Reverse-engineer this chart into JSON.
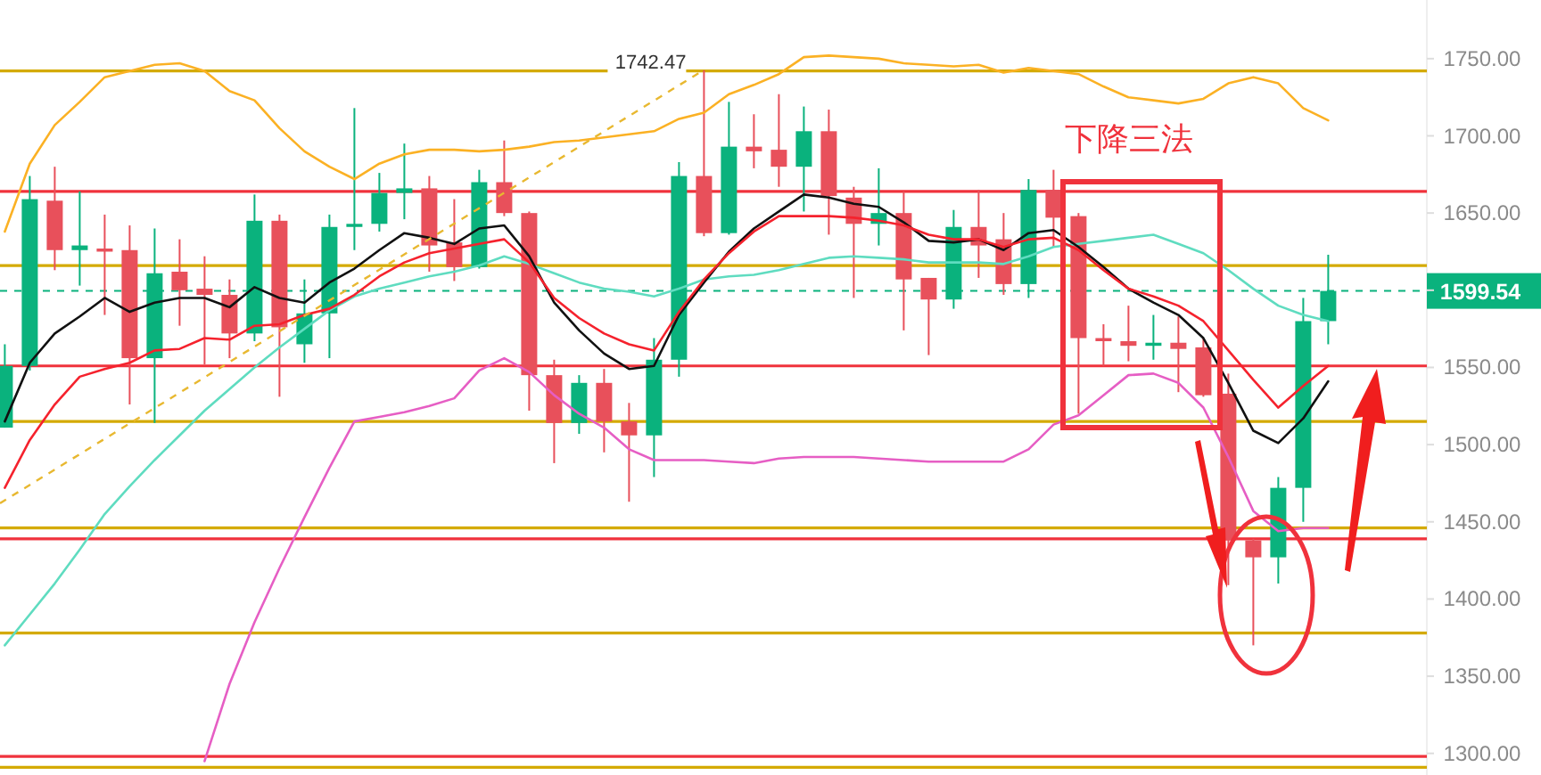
{
  "chart_data": {
    "type": "candlestick",
    "tick_labels": "y",
    "grid": false,
    "categories": [
      null,
      null,
      null,
      null,
      null,
      null,
      null,
      null,
      null,
      null,
      null,
      null,
      null,
      null,
      null,
      null,
      null,
      null,
      null,
      null,
      null,
      null,
      null,
      null,
      null,
      null,
      null,
      null,
      null,
      null,
      null,
      null,
      null,
      null,
      null,
      null,
      null,
      null,
      null,
      null,
      null,
      null,
      null,
      null,
      null,
      null,
      null,
      null,
      null,
      null,
      null,
      null,
      null,
      null
    ],
    "ohlc": [
      [
        1511,
        1565,
        1511,
        1551
      ],
      [
        1551,
        1674,
        1548,
        1659
      ],
      [
        1658,
        1680,
        1613,
        1626
      ],
      [
        1626,
        1664,
        1603,
        1629
      ],
      [
        1627,
        1649,
        1584,
        1625
      ],
      [
        1626,
        1642,
        1526,
        1556
      ],
      [
        1556,
        1640,
        1514,
        1611
      ],
      [
        1612,
        1633,
        1577,
        1600
      ],
      [
        1601,
        1622,
        1552,
        1597
      ],
      [
        1597,
        1607,
        1556,
        1572
      ],
      [
        1572,
        1662,
        1567,
        1645
      ],
      [
        1645,
        1649,
        1531,
        1576
      ],
      [
        1565,
        1607,
        1553,
        1585
      ],
      [
        1585,
        1649,
        1556,
        1641
      ],
      [
        1641,
        1718,
        1626,
        1643
      ],
      [
        1643,
        1676,
        1638,
        1663
      ],
      [
        1663,
        1695,
        1646,
        1666
      ],
      [
        1666,
        1674,
        1612,
        1629
      ],
      [
        1631,
        1659,
        1606,
        1615
      ],
      [
        1615,
        1678,
        1614,
        1670
      ],
      [
        1670,
        1697,
        1648,
        1650
      ],
      [
        1650,
        1651,
        1522,
        1545
      ],
      [
        1545,
        1555,
        1488,
        1514
      ],
      [
        1514,
        1545,
        1507,
        1540
      ],
      [
        1540,
        1549,
        1495,
        1515
      ],
      [
        1515,
        1527,
        1463,
        1506
      ],
      [
        1506,
        1569,
        1479,
        1555
      ],
      [
        1555,
        1683,
        1544,
        1674
      ],
      [
        1674,
        1742.47,
        1635,
        1637
      ],
      [
        1637,
        1722,
        1636,
        1693
      ],
      [
        1693,
        1714,
        1679,
        1690
      ],
      [
        1691,
        1727,
        1667,
        1680
      ],
      [
        1680,
        1719,
        1651,
        1703
      ],
      [
        1703,
        1717,
        1636,
        1661
      ],
      [
        1660,
        1667,
        1595,
        1643
      ],
      [
        1643,
        1679,
        1629,
        1650
      ],
      [
        1650,
        1664,
        1574,
        1607
      ],
      [
        1608,
        1608,
        1558,
        1594
      ],
      [
        1594,
        1652,
        1588,
        1641
      ],
      [
        1641,
        1665,
        1608,
        1629
      ],
      [
        1633,
        1650,
        1597,
        1604
      ],
      [
        1604,
        1672,
        1595,
        1665
      ],
      [
        1665,
        1678,
        1628,
        1647
      ],
      [
        1648,
        1650,
        1520,
        1569
      ],
      [
        1569,
        1578,
        1551,
        1567
      ],
      [
        1567,
        1590,
        1554,
        1564
      ],
      [
        1564,
        1584,
        1555,
        1566
      ],
      [
        1566,
        1583,
        1534,
        1562
      ],
      [
        1563,
        1569,
        1531,
        1532
      ],
      [
        1533,
        1546,
        1409,
        1438
      ],
      [
        1438,
        1439,
        1370,
        1427
      ],
      [
        1427,
        1479,
        1410,
        1472
      ],
      [
        1472,
        1595,
        1450,
        1580
      ],
      [
        1580,
        1623,
        1565,
        1599.54
      ]
    ],
    "colors": [
      "#0ab27d",
      "#0ab27d",
      "#e8505b",
      "#0ab27d",
      "#e8505b",
      "#e8505b",
      "#0ab27d",
      "#e8505b",
      "#e8505b",
      "#e8505b",
      "#0ab27d",
      "#e8505b",
      "#0ab27d",
      "#0ab27d",
      "#0ab27d",
      "#0ab27d",
      "#0ab27d",
      "#e8505b",
      "#e8505b",
      "#0ab27d",
      "#e8505b",
      "#e8505b",
      "#e8505b",
      "#0ab27d",
      "#e8505b",
      "#e8505b",
      "#0ab27d",
      "#0ab27d",
      "#e8505b",
      "#0ab27d",
      "#e8505b",
      "#e8505b",
      "#0ab27d",
      "#e8505b",
      "#e8505b",
      "#0ab27d",
      "#e8505b",
      "#e8505b",
      "#0ab27d",
      "#e8505b",
      "#e8505b",
      "#0ab27d",
      "#e8505b",
      "#e8505b",
      "#e8505b",
      "#e8505b",
      "#0ab27d",
      "#e8505b",
      "#e8505b",
      "#e8505b",
      "#e8505b",
      "#0ab27d",
      "#0ab27d",
      "#0ab27d"
    ],
    "series": [
      {
        "type": "line",
        "color": "#fbb124",
        "values": [
          1638,
          1682,
          1707,
          1722,
          1738,
          1742,
          1746,
          1747,
          1742,
          1729,
          1723,
          1705,
          1690,
          1680,
          1672,
          1682,
          1688,
          1691,
          1691,
          1690,
          1691,
          1693,
          1696,
          1697,
          1699,
          1701,
          1703,
          1711,
          1715,
          1727,
          1733,
          1740,
          1751,
          1752,
          1751,
          1750,
          1747,
          1746,
          1745,
          1746,
          1741,
          1744,
          1742,
          1740,
          1732,
          1725,
          1723,
          1721,
          1724,
          1734,
          1738,
          1734,
          1718,
          1710
        ]
      },
      {
        "type": "line",
        "color": "#e65ec4",
        "values": [
          null,
          null,
          null,
          null,
          null,
          null,
          null,
          null,
          1295,
          1345,
          1385,
          1420,
          1453,
          1485,
          1515,
          1518,
          1521,
          1525,
          1530,
          1548,
          1556,
          1547,
          1532,
          1520,
          1511,
          1497,
          1490,
          1490,
          1490,
          1489,
          1488,
          1491,
          1492,
          1492,
          1492,
          1491,
          1490,
          1489,
          1489,
          1489,
          1489,
          1497,
          1513,
          1519,
          1532,
          1545,
          1546,
          1540,
          1524,
          1492,
          1457,
          1444,
          1446,
          1446
        ]
      },
      {
        "type": "line",
        "color": "#5fdcc0",
        "values": [
          1370,
          1390,
          1410,
          1432,
          1455,
          1473,
          1490,
          1506,
          1522,
          1536,
          1550,
          1563,
          1575,
          1587,
          1596,
          1601,
          1605,
          1609,
          1612,
          1616,
          1622,
          1617,
          1611,
          1605,
          1601,
          1599,
          1596,
          1601,
          1607,
          1609,
          1610,
          1613,
          1617,
          1621,
          1622,
          1621,
          1620,
          1618,
          1618,
          1618,
          1617,
          1622,
          1628,
          1630,
          1632,
          1634,
          1636,
          1630,
          1624,
          1613,
          1601,
          1590,
          1584,
          1580
        ]
      },
      {
        "type": "line",
        "color": "#111111",
        "values": [
          1515,
          1553,
          1572,
          1583,
          1595,
          1586,
          1592,
          1595,
          1595,
          1589,
          1602,
          1595,
          1592,
          1605,
          1614,
          1626,
          1637,
          1634,
          1630,
          1640,
          1642,
          1622,
          1592,
          1574,
          1559,
          1549,
          1551,
          1584,
          1605,
          1625,
          1640,
          1651,
          1662,
          1660,
          1656,
          1654,
          1644,
          1632,
          1631,
          1633,
          1626,
          1637,
          1639,
          1628,
          1615,
          1601,
          1592,
          1584,
          1569,
          1540,
          1509,
          1501,
          1517,
          1541
        ]
      },
      {
        "type": "line",
        "color": "#f5222d",
        "values": [
          1472,
          1503,
          1526,
          1544,
          1549,
          1553,
          1561,
          1562,
          1569,
          1568,
          1577,
          1578,
          1584,
          1588,
          1597,
          1609,
          1618,
          1624,
          1627,
          1630,
          1633,
          1618,
          1595,
          1582,
          1572,
          1565,
          1561,
          1586,
          1607,
          1624,
          1638,
          1648,
          1648,
          1648,
          1647,
          1645,
          1642,
          1636,
          1633,
          1633,
          1628,
          1633,
          1634,
          1626,
          1613,
          1601,
          1596,
          1590,
          1580,
          1561,
          1542,
          1524,
          1538,
          1551
        ]
      }
    ],
    "ref_lines": [
      {
        "axis": "y",
        "value": 1742,
        "color": "#d4aa00"
      },
      {
        "axis": "y",
        "value": 1664,
        "color": "#f0323c"
      },
      {
        "axis": "y",
        "value": 1616,
        "color": "#d4aa00"
      },
      {
        "axis": "y",
        "value": 1551,
        "color": "#f0323c"
      },
      {
        "axis": "y",
        "value": 1515,
        "color": "#d4aa00"
      },
      {
        "axis": "y",
        "value": 1446,
        "color": "#d4aa00"
      },
      {
        "axis": "y",
        "value": 1439,
        "color": "#f0323c"
      },
      {
        "axis": "y",
        "value": 1378,
        "color": "#d4aa00"
      },
      {
        "axis": "y",
        "value": 1298,
        "color": "#f0323c"
      },
      {
        "axis": "y",
        "value": 1291,
        "color": "#d4aa00"
      },
      {
        "axis": "y",
        "value": 1599.54,
        "label": "1599.54",
        "color": "#0ab27d",
        "line_style": "dashed"
      }
    ],
    "ylim": [
      1286,
      1788
    ],
    "yticks": [
      {
        "value": 1300,
        "label": "1300.00"
      },
      {
        "value": 1350,
        "label": "1350.00"
      },
      {
        "value": 1400,
        "label": "1400.00"
      },
      {
        "value": 1450,
        "label": "1450.00"
      },
      {
        "value": 1500,
        "label": "1500.00"
      },
      {
        "value": 1550,
        "label": "1550.00"
      },
      {
        "value": 1600,
        "label": null
      },
      {
        "value": 1650,
        "label": "1650.00"
      },
      {
        "value": 1700,
        "label": "1700.00"
      },
      {
        "value": 1750,
        "label": "1750.00"
      }
    ],
    "annotations": [
      "1742.47",
      "下降三法"
    ]
  }
}
